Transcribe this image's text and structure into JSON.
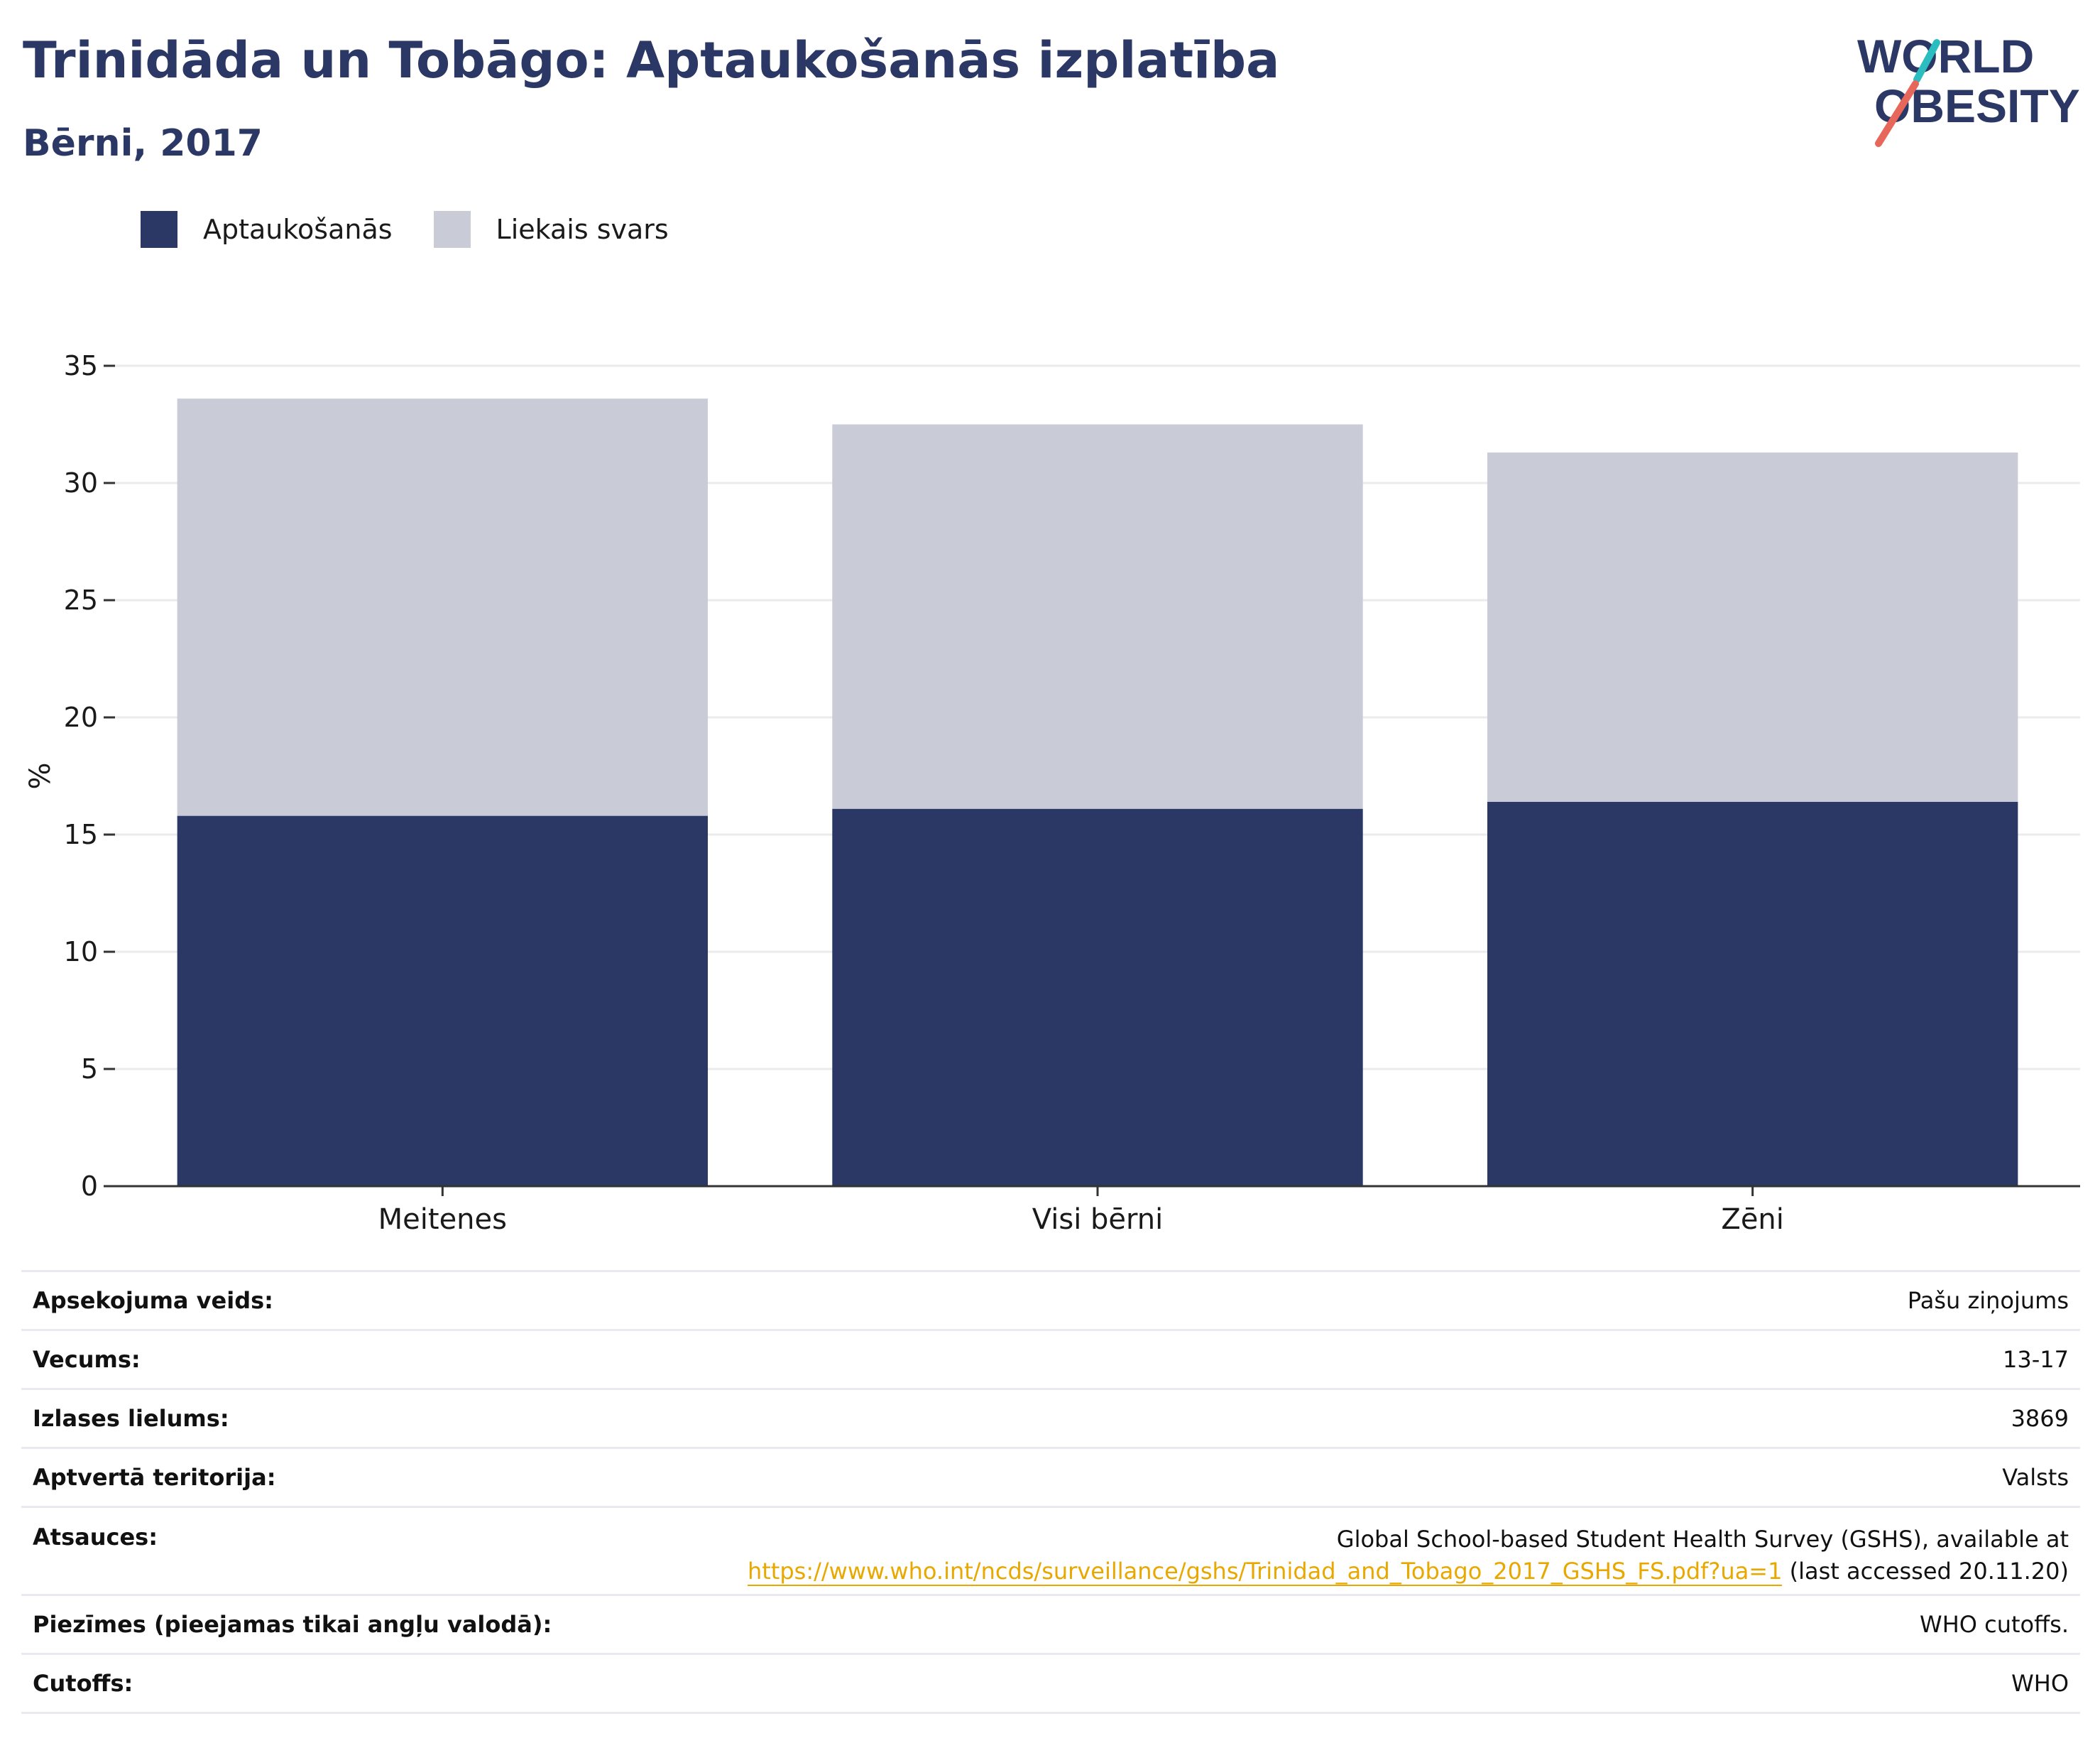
{
  "header": {
    "title": "Trinidāda un Tobāgo: Aptaukošanās izplatība",
    "subtitle": "Bērni, 2017"
  },
  "logo": {
    "line1": "WORLD",
    "line2": "OBESITY"
  },
  "colors": {
    "obesity": "#2b3764",
    "overweight": "#c9cbd7",
    "title": "#2b3764",
    "link": "#e8a800",
    "logo_teal": "#2bbdc0",
    "logo_red": "#e8675b"
  },
  "legend": [
    {
      "label": "Aptaukošanās",
      "color": "#2b3764"
    },
    {
      "label": "Liekais svars",
      "color": "#c9cbd7"
    }
  ],
  "chart_data": {
    "type": "bar",
    "stacked": true,
    "categories": [
      "Meitenes",
      "Visi bērni",
      "Zēni"
    ],
    "series": [
      {
        "name": "Aptaukošanās",
        "values": [
          15.8,
          16.1,
          16.4
        ]
      },
      {
        "name": "Liekais svars",
        "values": [
          17.8,
          16.4,
          14.9
        ]
      }
    ],
    "ylabel": "%",
    "ylim": [
      0,
      35
    ],
    "yticks": [
      0,
      5,
      10,
      15,
      20,
      25,
      30,
      35
    ],
    "grid": true,
    "legend_position": "top-left"
  },
  "info": {
    "survey_type": {
      "label": "Apsekojuma veids:",
      "value": "Pašu ziņojums"
    },
    "age": {
      "label": "Vecums:",
      "value": "13-17"
    },
    "sample_size": {
      "label": "Izlases lielums:",
      "value": "3869"
    },
    "coverage": {
      "label": "Aptvertā teritorija:",
      "value": "Valsts"
    },
    "references": {
      "label": "Atsauces:",
      "line1": "Global School-based Student Health Survey (GSHS), available at",
      "link": "https://www.who.int/ncds/surveillance/gshs/Trinidad_and_Tobago_2017_GSHS_FS.pdf?ua=1",
      "suffix": " (last accessed 20.11.20)"
    },
    "notes": {
      "label": "Piezīmes (pieejamas tikai angļu valodā):",
      "value": "WHO cutoffs."
    },
    "cutoffs": {
      "label": "Cutoffs:",
      "value": "WHO"
    }
  }
}
